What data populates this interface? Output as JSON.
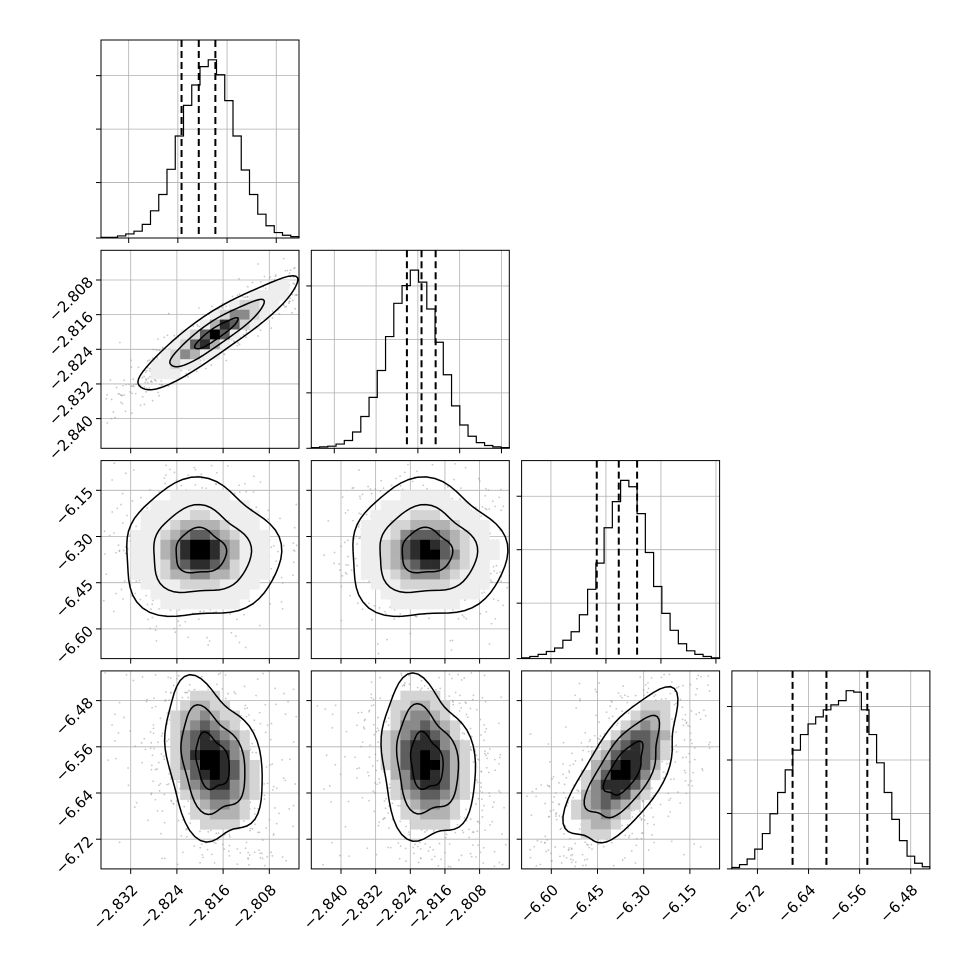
{
  "chart_data": {
    "type": "corner",
    "title": "",
    "grid": true,
    "variables": [
      {
        "ticks": [
          "−2.832",
          "−2.824",
          "−2.816",
          "−2.808"
        ],
        "quantiles": [
          -2.8234,
          -2.8206,
          -2.8179
        ]
      },
      {
        "ticks": [
          "−2.840",
          "−2.832",
          "−2.824",
          "−2.816",
          "−2.808"
        ],
        "quantiles": [
          -2.8261,
          -2.8233,
          -2.8206
        ]
      },
      {
        "ticks": [
          "−6.60",
          "−6.45",
          "−6.30",
          "−6.15"
        ],
        "quantiles": [
          -6.475,
          -6.415,
          -6.365
        ]
      },
      {
        "ticks": [
          "−6.72",
          "−6.64",
          "−6.56",
          "−6.48"
        ],
        "quantiles": [
          -6.665,
          -6.612,
          -6.548
        ]
      }
    ],
    "row_tick_labels": [
      [],
      [
        "−2.808",
        "−2.816",
        "−2.824",
        "−2.832",
        "−2.840"
      ],
      [
        "−6.15",
        "−6.30",
        "−6.45",
        "−6.60"
      ],
      [
        "−6.48",
        "−6.56",
        "−6.64",
        "−6.72"
      ]
    ],
    "histograms": [
      {
        "range": [
          -2.8365,
          -2.8043
        ],
        "counts": [
          1,
          1,
          3,
          6,
          10,
          20,
          40,
          64,
          101,
          150,
          195,
          225,
          252,
          262,
          240,
          202,
          150,
          100,
          64,
          35,
          18,
          8,
          4,
          2
        ]
      },
      {
        "range": [
          -2.8444,
          -2.8065
        ],
        "counts": [
          1,
          2,
          3,
          6,
          11,
          23,
          45,
          72,
          110,
          158,
          205,
          230,
          252,
          235,
          197,
          150,
          104,
          60,
          33,
          17,
          8,
          4,
          2,
          1
        ]
      },
      {
        "range": [
          -6.68,
          -6.14
        ],
        "counts": [
          1,
          3,
          6,
          10,
          15,
          26,
          38,
          62,
          98,
          135,
          185,
          222,
          252,
          243,
          205,
          150,
          102,
          64,
          40,
          21,
          11,
          6,
          3,
          1
        ]
      },
      {
        "range": [
          -6.76,
          -6.45
        ],
        "counts": [
          2,
          6,
          14,
          28,
          50,
          78,
          108,
          140,
          168,
          190,
          205,
          215,
          225,
          232,
          238,
          252,
          250,
          225,
          190,
          150,
          108,
          70,
          40,
          18,
          8,
          3
        ]
      }
    ]
  }
}
